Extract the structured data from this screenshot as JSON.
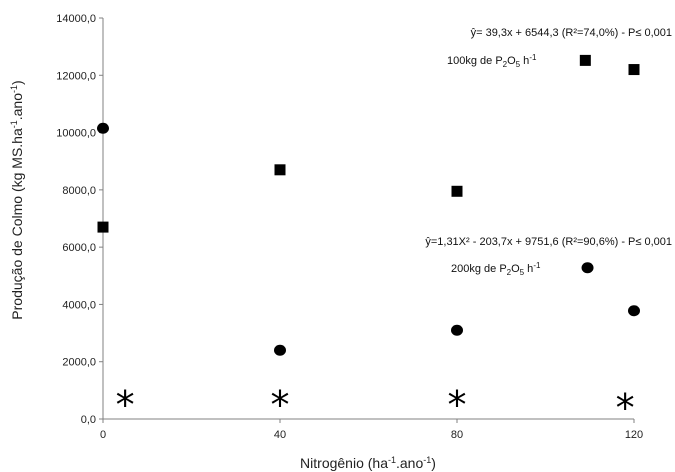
{
  "chart_data": {
    "type": "scatter",
    "title": "",
    "xlabel": "Nitrogênio (ha-1.ano-1)",
    "ylabel": "Produção de Colmo (kg MS.ha-1.ano-1)",
    "xlim": [
      0,
      120
    ],
    "ylim": [
      0,
      14000
    ],
    "x_ticks": [
      "0",
      "40",
      "80",
      "120"
    ],
    "y_ticks": [
      "0,0",
      "2000,0",
      "4000,0",
      "6000,0",
      "8000,0",
      "10000,0",
      "12000,0",
      "14000,0"
    ],
    "grid": false,
    "series": [
      {
        "name": "100kg de P2O5 h-1",
        "marker": "square",
        "x": [
          0,
          40,
          80,
          120
        ],
        "y": [
          6700,
          8700,
          7950,
          12200
        ]
      },
      {
        "name": "200kg de P2O5 h-1",
        "marker": "circle",
        "x": [
          0,
          40,
          80,
          120
        ],
        "y": [
          10150,
          2400,
          3100,
          3780
        ]
      }
    ],
    "legend_markers": [
      {
        "marker": "square",
        "x": 109,
        "y": 12520
      },
      {
        "marker": "circle",
        "x": 109.5,
        "y": 5280
      }
    ],
    "annotations": {
      "eq_square": "ŷ= 39,3x + 6544,3 (R²=74,0%) - P≤ 0,001",
      "label_square": {
        "pre": "100kg de P",
        "sub1": "2",
        "mid": "O",
        "sub2": "5",
        "post": " h",
        "sup": "-1"
      },
      "eq_circle": "ŷ=1,31X² - 203,7x + 9751,6 (R²=90,6%) - P≤ 0,001",
      "label_circle": {
        "pre": "200kg de P",
        "sub1": "2",
        "mid": "O",
        "sub2": "5",
        "post": " h",
        "sup": "-1"
      }
    },
    "asterisks": {
      "symbol": "*",
      "x": [
        5,
        40,
        80,
        118
      ],
      "y": [
        800,
        800,
        800,
        700
      ]
    },
    "x_title": {
      "pre": "Nitrogênio (ha",
      "sup1": "-1",
      "mid": ".ano",
      "sup2": "-1",
      "post": ")"
    },
    "y_title": {
      "pre": "Produção de Colmo (kg MS.ha",
      "sup1": "-1",
      "mid": ".ano",
      "sup2": "-1",
      "post": ")"
    },
    "colors": {
      "markers": "#000000",
      "axis": "#808080"
    }
  }
}
